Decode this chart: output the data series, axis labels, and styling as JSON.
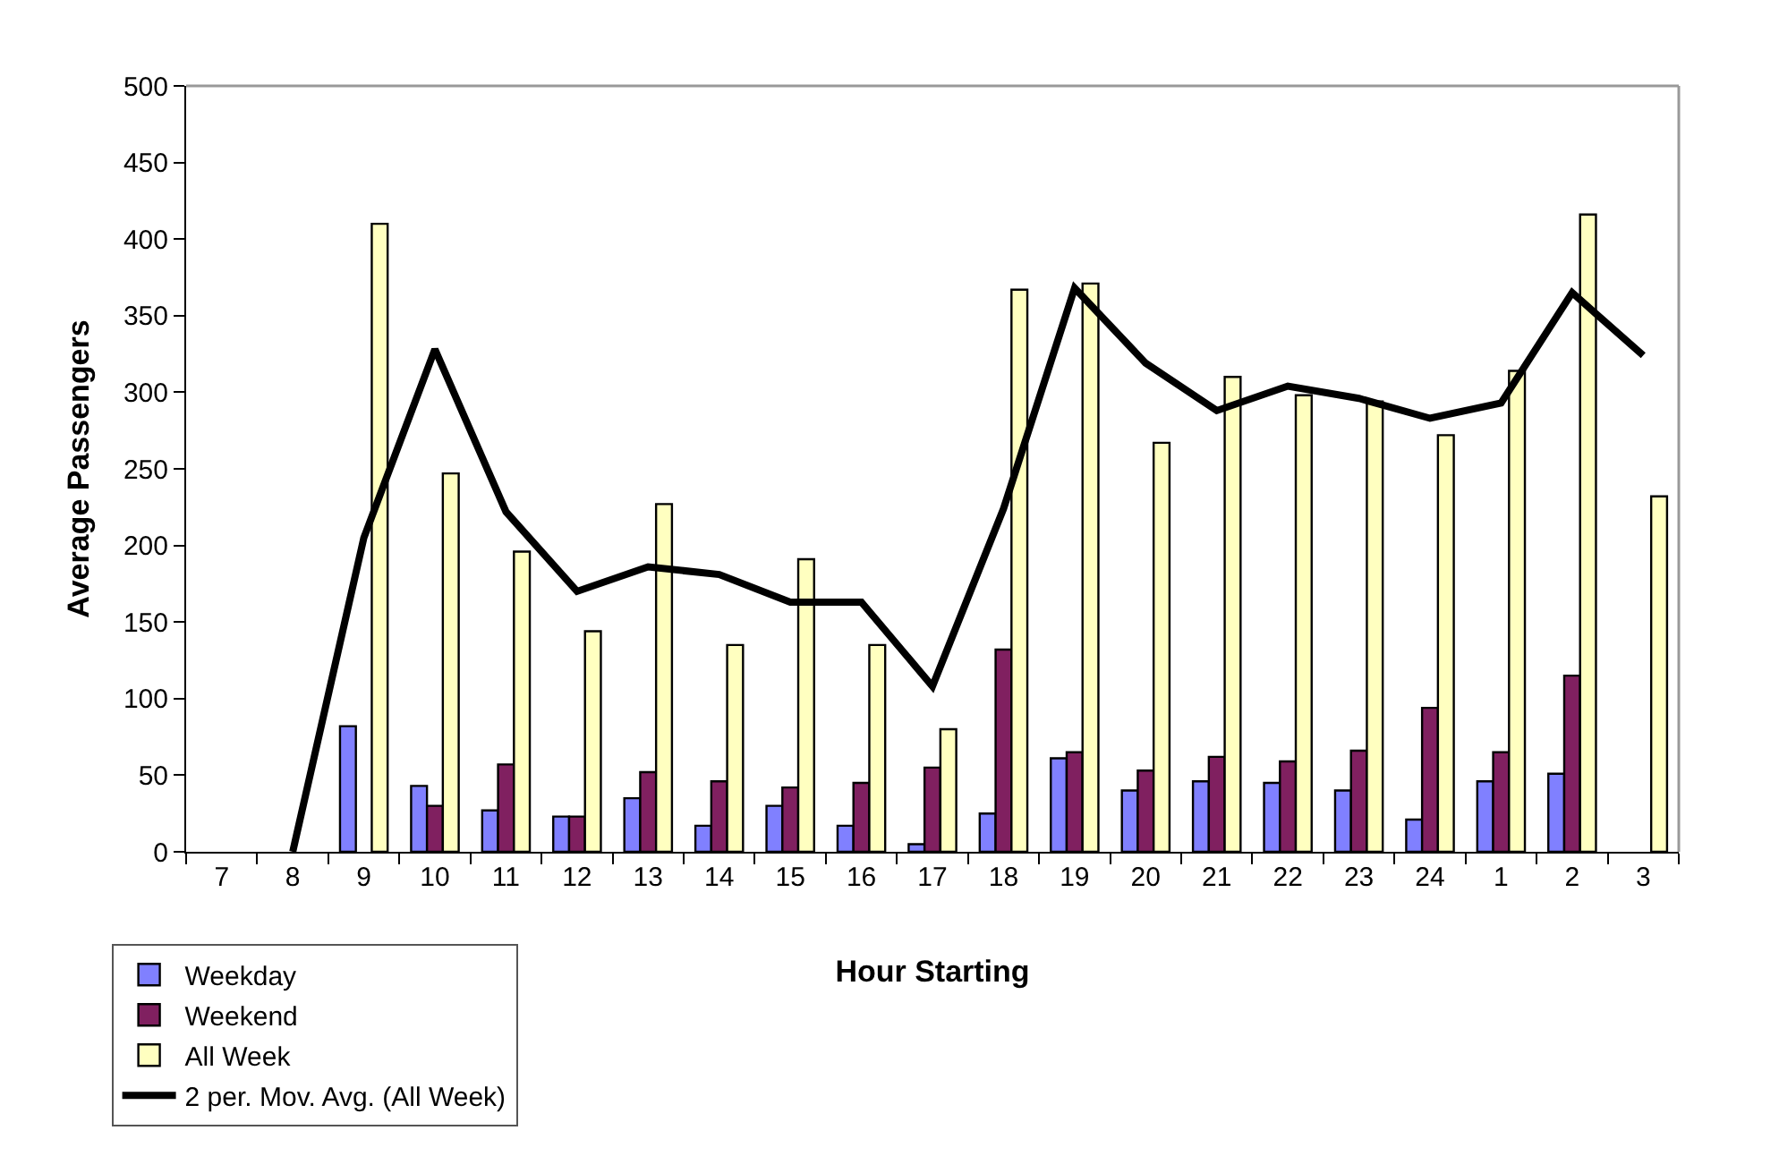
{
  "chart_data": {
    "type": "bar",
    "xlabel": "Hour Starting",
    "ylabel": "Average Passengers",
    "categories": [
      "7",
      "8",
      "9",
      "10",
      "11",
      "12",
      "13",
      "14",
      "15",
      "16",
      "17",
      "18",
      "19",
      "20",
      "21",
      "22",
      "23",
      "24",
      "1",
      "2",
      "3"
    ],
    "series": [
      {
        "name": "Weekday",
        "color": "#8080ff",
        "values": [
          null,
          null,
          82,
          43,
          27,
          23,
          35,
          17,
          30,
          17,
          5,
          25,
          61,
          40,
          46,
          45,
          40,
          21,
          46,
          51,
          null
        ]
      },
      {
        "name": "Weekend",
        "color": "#802060",
        "values": [
          null,
          null,
          null,
          30,
          57,
          23,
          52,
          46,
          42,
          45,
          55,
          132,
          65,
          53,
          62,
          59,
          66,
          94,
          65,
          115,
          null
        ]
      },
      {
        "name": "All Week",
        "color": "#ffffc0",
        "values": [
          null,
          null,
          410,
          247,
          196,
          144,
          227,
          135,
          191,
          135,
          80,
          367,
          371,
          267,
          310,
          298,
          294,
          272,
          314,
          416,
          232
        ]
      },
      {
        "name": "2 per. Mov. Avg. (All Week)",
        "type": "line",
        "color": "#000000",
        "line_style": "solid",
        "marker": "none",
        "values": [
          null,
          0,
          205,
          328,
          222,
          170,
          186,
          181,
          163,
          163,
          108,
          224,
          368,
          319,
          288,
          304,
          296,
          283,
          293,
          365,
          324
        ]
      }
    ],
    "ylim": [
      0,
      500
    ],
    "yticks": [
      0,
      50,
      100,
      150,
      200,
      250,
      300,
      350,
      400,
      450,
      500
    ],
    "grid": false,
    "legend": "bottom left"
  }
}
